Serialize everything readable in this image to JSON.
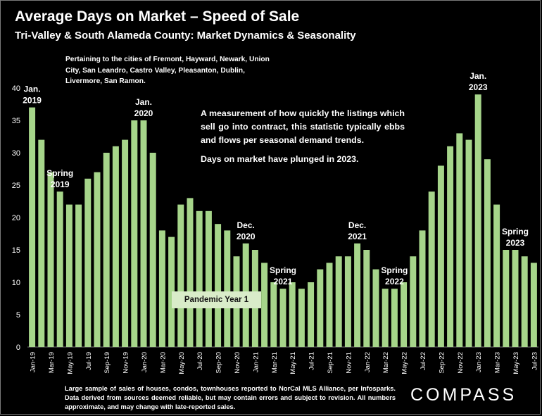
{
  "title": "Average Days on Market – Speed of Sale",
  "subtitle": "Tri-Valley & South Alameda County: Market Dynamics & Seasonality",
  "cities_note": "Pertaining to the cities of Fremont, Hayward, Newark, Union City, San Leandro, Castro Valley, Pleasanton, Dublin, Livermore, San Ramon.",
  "description": "A measurement of how quickly the listings which sell go into contract, this statistic typically ebbs and flows per seasonal demand trends.",
  "description_2": "Days on market have plunged in 2023.",
  "pandemic_label": "Pandemic Year 1",
  "footnote": "Large sample of sales of houses, condos, townhouses reported to NorCal MLS Alliance, per Infosparks. Data derived from sources deemed reliable, but may contain errors and subject to revision. All numbers approximate, and may change with late-reported sales.",
  "brand": "COMPASS",
  "colors": {
    "bar": "#a6d58a",
    "background": "#000000",
    "text": "#ffffff",
    "pandemic_box": "#d9ecc9"
  },
  "chart_data": {
    "type": "bar",
    "title": "Average Days on Market – Speed of Sale",
    "xlabel": "",
    "ylabel": "",
    "ylim": [
      0,
      40
    ],
    "yticks": [
      0,
      5,
      10,
      15,
      20,
      25,
      30,
      35,
      40
    ],
    "grid": false,
    "categories": [
      "Jan-19",
      "Feb-19",
      "Mar-19",
      "Apr-19",
      "May-19",
      "Jun-19",
      "Jul-19",
      "Aug-19",
      "Sep-19",
      "Oct-19",
      "Nov-19",
      "Dec-19",
      "Jan-20",
      "Feb-20",
      "Mar-20",
      "Apr-20",
      "May-20",
      "Jun-20",
      "Jul-20",
      "Aug-20",
      "Sep-20",
      "Oct-20",
      "Nov-20",
      "Dec-20",
      "Jan-21",
      "Feb-21",
      "Mar-21",
      "Apr-21",
      "May-21",
      "Jun-21",
      "Jul-21",
      "Aug-21",
      "Sep-21",
      "Oct-21",
      "Nov-21",
      "Dec-21",
      "Jan-22",
      "Feb-22",
      "Mar-22",
      "Apr-22",
      "May-22",
      "Jun-22",
      "Jul-22",
      "Aug-22",
      "Sep-22",
      "Oct-22",
      "Nov-22",
      "Dec-22",
      "Jan-23",
      "Feb-23",
      "Mar-23",
      "Apr-23",
      "May-23",
      "Jun-23",
      "Jul-23"
    ],
    "values": [
      37,
      32,
      27,
      24,
      22,
      22,
      26,
      27,
      30,
      31,
      32,
      35,
      35,
      30,
      18,
      17,
      22,
      23,
      21,
      21,
      19,
      18,
      14,
      16,
      15,
      13,
      10,
      9,
      10,
      9,
      10,
      12,
      13,
      14,
      14,
      16,
      15,
      12,
      9,
      9,
      10,
      14,
      18,
      24,
      28,
      31,
      33,
      32,
      39,
      29,
      22,
      15,
      15,
      14,
      13
    ],
    "tick_labels": [
      "Jan-19",
      "Mar-19",
      "May-19",
      "Jul-19",
      "Sep-19",
      "Nov-19",
      "Jan-20",
      "Mar-20",
      "May-20",
      "Jul-20",
      "Sep-20",
      "Nov-20",
      "Jan-21",
      "Mar-21",
      "May-21",
      "Jul-21",
      "Sep-21",
      "Nov-21",
      "Jan-22",
      "Mar-22",
      "May-22",
      "Jul-22",
      "Sep-22",
      "Nov-22",
      "Jan-23",
      "Mar-23",
      "May-23",
      "Jul-23"
    ],
    "annotations": [
      {
        "lines": [
          "Jan.",
          "2019"
        ],
        "index": 0
      },
      {
        "lines": [
          "Spring",
          "2019"
        ],
        "index": 3
      },
      {
        "lines": [
          "Jan.",
          "2020"
        ],
        "index": 12
      },
      {
        "lines": [
          "Dec.",
          "2020"
        ],
        "index": 23
      },
      {
        "lines": [
          "Spring",
          "2021"
        ],
        "index": 27
      },
      {
        "lines": [
          "Dec.",
          "2021"
        ],
        "index": 35
      },
      {
        "lines": [
          "Spring",
          "2022"
        ],
        "index": 39
      },
      {
        "lines": [
          "Jan.",
          "2023"
        ],
        "index": 48
      },
      {
        "lines": [
          "Spring",
          "2023"
        ],
        "index": 52
      }
    ]
  }
}
